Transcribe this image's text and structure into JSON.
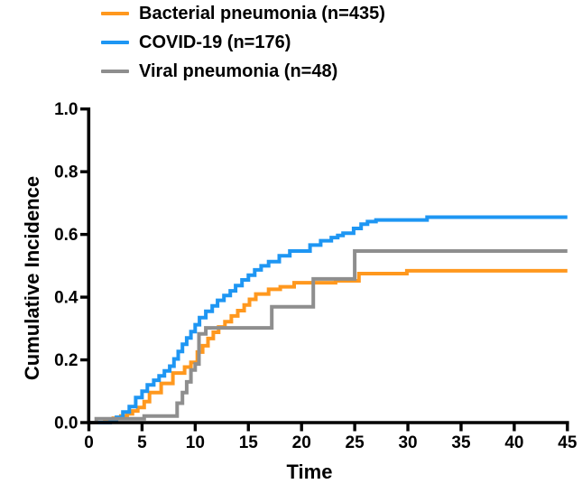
{
  "figure": {
    "background": "#ffffff",
    "axis_color": "#000000",
    "text_color": "#000000"
  },
  "chart_data": {
    "type": "line",
    "style": "step",
    "title": "",
    "xlabel": "Time",
    "ylabel": "Cumulative Incidence",
    "xlim": [
      0,
      45
    ],
    "ylim": [
      0.0,
      1.0
    ],
    "x_ticks": [
      0,
      5,
      10,
      15,
      20,
      25,
      30,
      35,
      40,
      45
    ],
    "y_ticks": [
      0.0,
      0.2,
      0.4,
      0.6,
      0.8,
      1.0
    ],
    "grid": false,
    "legend_position": "top-left",
    "axis_color": "#000000",
    "series": [
      {
        "name": "Bacterial pneumonia (n=435)",
        "n": 435,
        "color": "#ff981e",
        "final_value": 0.48,
        "steps": [
          [
            1.5,
            0.007
          ],
          [
            2.3,
            0.014
          ],
          [
            3.0,
            0.021
          ],
          [
            3.6,
            0.028
          ],
          [
            4.1,
            0.037
          ],
          [
            4.6,
            0.048
          ],
          [
            5.2,
            0.067
          ],
          [
            5.7,
            0.096
          ],
          [
            6.8,
            0.125
          ],
          [
            7.9,
            0.158
          ],
          [
            9.0,
            0.177
          ],
          [
            9.6,
            0.192
          ],
          [
            10.2,
            0.225
          ],
          [
            10.7,
            0.245
          ],
          [
            11.2,
            0.268
          ],
          [
            11.7,
            0.288
          ],
          [
            12.2,
            0.305
          ],
          [
            12.8,
            0.322
          ],
          [
            13.4,
            0.34
          ],
          [
            14.0,
            0.357
          ],
          [
            14.6,
            0.375
          ],
          [
            15.1,
            0.393
          ],
          [
            15.7,
            0.41
          ],
          [
            16.9,
            0.425
          ],
          [
            18.0,
            0.433
          ],
          [
            19.3,
            0.446
          ],
          [
            23.2,
            0.452
          ],
          [
            25.4,
            0.475
          ],
          [
            29.9,
            0.484
          ],
          [
            45,
            0.484
          ]
        ]
      },
      {
        "name": "COVID-19 (n=176)",
        "n": 176,
        "color": "#1e96f3",
        "final_value": 0.65,
        "steps": [
          [
            2.0,
            0.006
          ],
          [
            2.6,
            0.017
          ],
          [
            3.2,
            0.034
          ],
          [
            3.8,
            0.051
          ],
          [
            4.4,
            0.08
          ],
          [
            5.0,
            0.1
          ],
          [
            5.5,
            0.12
          ],
          [
            6.1,
            0.135
          ],
          [
            6.6,
            0.149
          ],
          [
            7.1,
            0.165
          ],
          [
            7.6,
            0.18
          ],
          [
            8.0,
            0.203
          ],
          [
            8.4,
            0.227
          ],
          [
            8.8,
            0.25
          ],
          [
            9.2,
            0.27
          ],
          [
            9.6,
            0.29
          ],
          [
            10.0,
            0.312
          ],
          [
            10.4,
            0.335
          ],
          [
            11.0,
            0.355
          ],
          [
            11.6,
            0.372
          ],
          [
            12.1,
            0.39
          ],
          [
            12.7,
            0.405
          ],
          [
            13.3,
            0.42
          ],
          [
            13.8,
            0.437
          ],
          [
            14.4,
            0.455
          ],
          [
            15.0,
            0.47
          ],
          [
            15.6,
            0.487
          ],
          [
            16.2,
            0.5
          ],
          [
            16.9,
            0.513
          ],
          [
            17.9,
            0.532
          ],
          [
            18.9,
            0.547
          ],
          [
            20.8,
            0.566
          ],
          [
            21.8,
            0.58
          ],
          [
            22.8,
            0.59
          ],
          [
            23.4,
            0.597
          ],
          [
            23.9,
            0.604
          ],
          [
            24.9,
            0.619
          ],
          [
            25.6,
            0.633
          ],
          [
            26.2,
            0.641
          ],
          [
            27.0,
            0.646
          ],
          [
            31.8,
            0.655
          ],
          [
            45,
            0.655
          ]
        ]
      },
      {
        "name": "Viral pneumonia (n=48)",
        "n": 48,
        "color": "#8e8e8e",
        "final_value": 0.545,
        "steps": [
          [
            0.7,
            0.012
          ],
          [
            5.2,
            0.021
          ],
          [
            8.3,
            0.062
          ],
          [
            8.8,
            0.096
          ],
          [
            9.2,
            0.13
          ],
          [
            9.6,
            0.168
          ],
          [
            10.0,
            0.187
          ],
          [
            10.35,
            0.283
          ],
          [
            11.0,
            0.302
          ],
          [
            17.2,
            0.369
          ],
          [
            21.1,
            0.458
          ],
          [
            25.0,
            0.547
          ],
          [
            45,
            0.547
          ]
        ]
      }
    ]
  }
}
